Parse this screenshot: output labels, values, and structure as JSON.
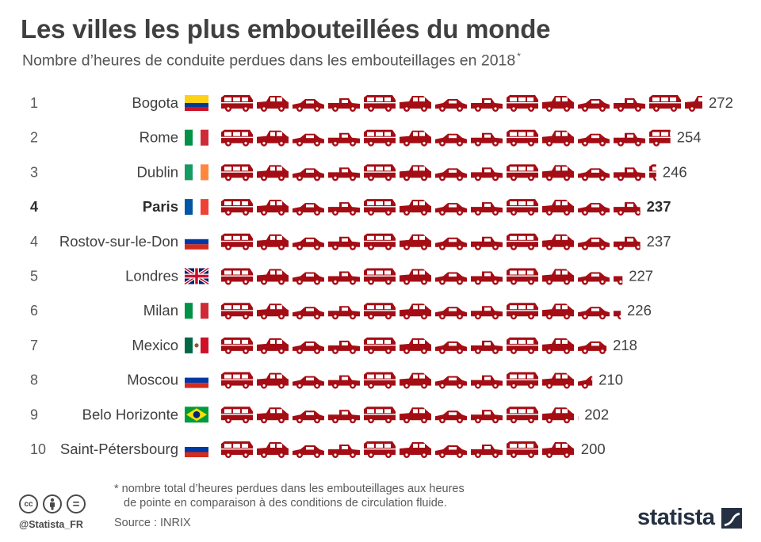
{
  "title": "Les villes les plus embouteillées du monde",
  "subtitle": "Nombre d’heures de conduite perdues dans les embouteillages en 2018",
  "subtitle_mark": "*",
  "icon_color": "#a50d15",
  "icon_names": [
    "car-icon",
    "flag-icon"
  ],
  "chart_data": {
    "type": "bar",
    "pictogram": "car",
    "categories": [
      "Bogota",
      "Rome",
      "Dublin",
      "Paris",
      "Rostov-sur-le-Don",
      "Londres",
      "Milan",
      "Mexico",
      "Moscou",
      "Belo Horizonte",
      "Saint-Pétersbourg"
    ],
    "ranks": [
      "1",
      "2",
      "3",
      "4",
      "4",
      "5",
      "6",
      "7",
      "8",
      "9",
      "10"
    ],
    "values": [
      272,
      254,
      246,
      237,
      237,
      227,
      226,
      218,
      210,
      202,
      200
    ],
    "flags": [
      "Colombia",
      "Italy",
      "Ireland",
      "France",
      "Russia",
      "United Kingdom",
      "Italy",
      "Mexico",
      "Russia",
      "Brazil",
      "Russia"
    ],
    "highlight": "Paris",
    "xlim": [
      0,
      272
    ]
  },
  "footnote": {
    "line1": "* nombre total d’heures perdues dans les embouteillages aux heures",
    "line2": "de pointe en comparaison à des conditions de circulation fluide."
  },
  "source": "Source : INRIX",
  "license_icons": [
    "cc",
    "by",
    "nd"
  ],
  "license_text": [
    "cc",
    "",
    "="
  ],
  "handle": "@Statista_FR",
  "brand": "statista"
}
